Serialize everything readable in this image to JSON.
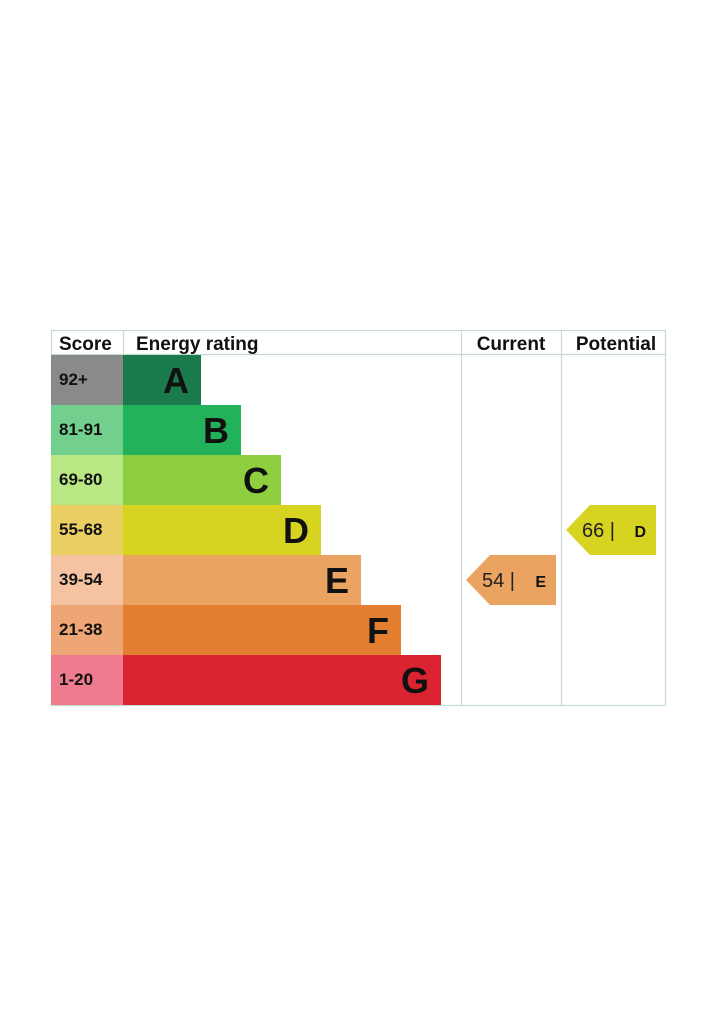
{
  "headers": {
    "score": "Score",
    "energy_rating": "Energy rating",
    "current": "Current",
    "potential": "Potential"
  },
  "chart_data": {
    "type": "bar",
    "bands": [
      {
        "letter": "A",
        "range": "92+",
        "min": 92,
        "max": 100,
        "color": "#1a7a4e",
        "score_color": "#8a8a8a"
      },
      {
        "letter": "B",
        "range": "81-91",
        "min": 81,
        "max": 91,
        "color": "#22b25a",
        "score_color": "#72cf8d"
      },
      {
        "letter": "C",
        "range": "69-80",
        "min": 69,
        "max": 80,
        "color": "#8dcf3e",
        "score_color": "#b9e783"
      },
      {
        "letter": "D",
        "range": "55-68",
        "min": 55,
        "max": 68,
        "color": "#d6d321",
        "score_color": "#eccf62"
      },
      {
        "letter": "E",
        "range": "39-54",
        "min": 39,
        "max": 54,
        "color": "#eba361",
        "score_color": "#f6c3a2"
      },
      {
        "letter": "F",
        "range": "21-38",
        "min": 21,
        "max": 38,
        "color": "#e47f31",
        "score_color": "#eea676"
      },
      {
        "letter": "G",
        "range": "1-20",
        "min": 1,
        "max": 20,
        "color": "#db2431",
        "score_color": "#ee7b8e"
      }
    ],
    "current": {
      "value": 54,
      "label": "54 |",
      "letter": "E",
      "color": "#eba361"
    },
    "potential": {
      "value": 66,
      "label": "66 |",
      "letter": "D",
      "color": "#d6d321"
    }
  }
}
